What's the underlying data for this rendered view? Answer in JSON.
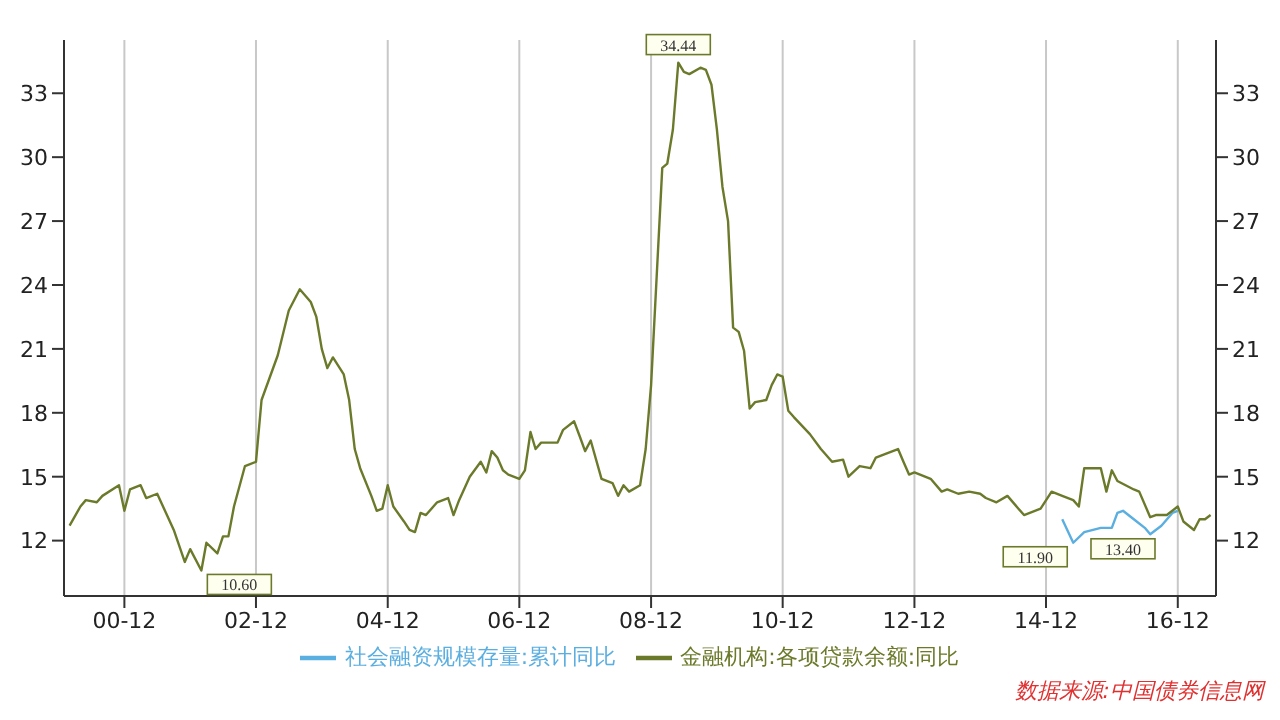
{
  "chart_data": {
    "type": "line",
    "xlim": [
      "2000-01",
      "2017-07"
    ],
    "xticks": [
      {
        "value": "2000-12",
        "label": "00-12"
      },
      {
        "value": "2002-12",
        "label": "02-12"
      },
      {
        "value": "2004-12",
        "label": "04-12"
      },
      {
        "value": "2006-12",
        "label": "06-12"
      },
      {
        "value": "2008-12",
        "label": "08-12"
      },
      {
        "value": "2010-12",
        "label": "10-12"
      },
      {
        "value": "2012-12",
        "label": "12-12"
      },
      {
        "value": "2014-12",
        "label": "14-12"
      },
      {
        "value": "2016-12",
        "label": "16-12"
      }
    ],
    "ylim": [
      9.4,
      35.5
    ],
    "yticks": [
      12,
      15,
      18,
      21,
      24,
      27,
      30,
      33
    ],
    "y2lim": [
      9.4,
      35.5
    ],
    "y2ticks": [
      12,
      15,
      18,
      21,
      24,
      27,
      30,
      33
    ],
    "grid": "x",
    "legend": "bottom",
    "marker": "none",
    "line_style": "solid",
    "series": [
      {
        "name": "社会融资规模存量:累计同比",
        "color": "#5aaee0",
        "x": [
          "2015-03",
          "2015-05",
          "2015-07",
          "2015-10",
          "2015-12",
          "2016-01",
          "2016-02",
          "2016-04",
          "2016-06",
          "2016-07",
          "2016-09",
          "2016-11",
          "2016-12"
        ],
        "values": [
          13.0,
          11.9,
          12.4,
          12.6,
          12.6,
          13.3,
          13.4,
          13.0,
          12.6,
          12.3,
          12.7,
          13.3,
          13.4
        ]
      },
      {
        "name": "金融机构:各项贷款余额:同比",
        "color": "#6b7a2a",
        "x": [
          "2000-02",
          "2000-04",
          "2000-05",
          "2000-07",
          "2000-08",
          "2000-11",
          "2000-12",
          "2001-01",
          "2001-03",
          "2001-04",
          "2001-06",
          "2001-09",
          "2001-11",
          "2001-12",
          "2002-02",
          "2002-03",
          "2002-05",
          "2002-06",
          "2002-07",
          "2002-08",
          "2002-10",
          "2002-12",
          "2003-01",
          "2003-04",
          "2003-06",
          "2003-08",
          "2003-10",
          "2003-11",
          "2003-12",
          "2004-01",
          "2004-02",
          "2004-04",
          "2004-05",
          "2004-06",
          "2004-07",
          "2004-09",
          "2004-10",
          "2004-11",
          "2004-12",
          "2005-01",
          "2005-03",
          "2005-04",
          "2005-05",
          "2005-06",
          "2005-07",
          "2005-09",
          "2005-11",
          "2005-12",
          "2006-01",
          "2006-03",
          "2006-05",
          "2006-06",
          "2006-07",
          "2006-08",
          "2006-09",
          "2006-10",
          "2006-12",
          "2007-01",
          "2007-02",
          "2007-03",
          "2007-04",
          "2007-07",
          "2007-08",
          "2007-10",
          "2007-11",
          "2007-12",
          "2008-01",
          "2008-03",
          "2008-05",
          "2008-06",
          "2008-07",
          "2008-08",
          "2008-10",
          "2008-11",
          "2008-12",
          "2009-02",
          "2009-03",
          "2009-04",
          "2009-05",
          "2009-06",
          "2009-07",
          "2009-09",
          "2009-10",
          "2009-11",
          "2009-12",
          "2010-01",
          "2010-02",
          "2010-03",
          "2010-04",
          "2010-05",
          "2010-06",
          "2010-07",
          "2010-09",
          "2010-10",
          "2010-11",
          "2010-12",
          "2011-01",
          "2011-02",
          "2011-05",
          "2011-07",
          "2011-09",
          "2011-11",
          "2011-12",
          "2012-02",
          "2012-04",
          "2012-05",
          "2012-07",
          "2012-09",
          "2012-10",
          "2012-11",
          "2012-12",
          "2013-03",
          "2013-05",
          "2013-06",
          "2013-08",
          "2013-10",
          "2013-12",
          "2014-01",
          "2014-03",
          "2014-05",
          "2014-07",
          "2014-08",
          "2014-11",
          "2015-01",
          "2015-03",
          "2015-05",
          "2015-06",
          "2015-07",
          "2015-10",
          "2015-11",
          "2015-12",
          "2016-01",
          "2016-04",
          "2016-05",
          "2016-07",
          "2016-08",
          "2016-10",
          "2016-12",
          "2017-01",
          "2017-03",
          "2017-04",
          "2017-05",
          "2017-06"
        ],
        "values": [
          12.7,
          13.6,
          13.9,
          13.8,
          14.1,
          14.6,
          13.4,
          14.4,
          14.6,
          14.0,
          14.2,
          12.5,
          11.0,
          11.6,
          10.6,
          11.9,
          11.4,
          12.2,
          12.2,
          13.6,
          15.5,
          15.7,
          18.6,
          20.7,
          22.8,
          23.8,
          23.2,
          22.5,
          21.0,
          20.1,
          20.6,
          19.8,
          18.6,
          16.3,
          15.4,
          14.1,
          13.4,
          13.5,
          14.6,
          13.6,
          12.9,
          12.5,
          12.4,
          13.3,
          13.2,
          13.8,
          14.0,
          13.2,
          13.9,
          15.0,
          15.7,
          15.2,
          16.2,
          15.9,
          15.3,
          15.1,
          14.9,
          15.3,
          17.1,
          16.3,
          16.6,
          16.6,
          17.2,
          17.6,
          16.9,
          16.2,
          16.7,
          14.9,
          14.7,
          14.1,
          14.6,
          14.3,
          14.6,
          16.3,
          19.3,
          29.5,
          29.7,
          31.3,
          34.44,
          34.0,
          33.9,
          34.2,
          34.1,
          33.4,
          31.3,
          28.6,
          27.0,
          22.0,
          21.8,
          20.9,
          18.2,
          18.5,
          18.6,
          19.3,
          19.8,
          19.7,
          18.1,
          17.8,
          17.0,
          16.3,
          15.7,
          15.8,
          15.0,
          15.5,
          15.4,
          15.9,
          16.1,
          16.3,
          15.7,
          15.1,
          15.2,
          14.9,
          14.3,
          14.4,
          14.2,
          14.3,
          14.2,
          14.0,
          13.8,
          14.1,
          13.5,
          13.2,
          13.5,
          14.3,
          14.1,
          13.9,
          13.6,
          15.4,
          15.4,
          14.3,
          15.3,
          14.8,
          14.4,
          14.3,
          13.1,
          13.2,
          13.2,
          13.6,
          12.9,
          12.5,
          13.0,
          13.0,
          13.2
        ]
      }
    ],
    "annotations": [
      {
        "text": "10.60",
        "x": "2002-02",
        "y": 10.6
      },
      {
        "text": "34.44",
        "x": "2009-05",
        "y": 34.44
      },
      {
        "text": "11.90",
        "x": "2015-05",
        "y": 11.9
      },
      {
        "text": "13.40",
        "x": "2016-02",
        "y": 13.4
      },
      "数据来源:中国债券信息网"
    ]
  }
}
